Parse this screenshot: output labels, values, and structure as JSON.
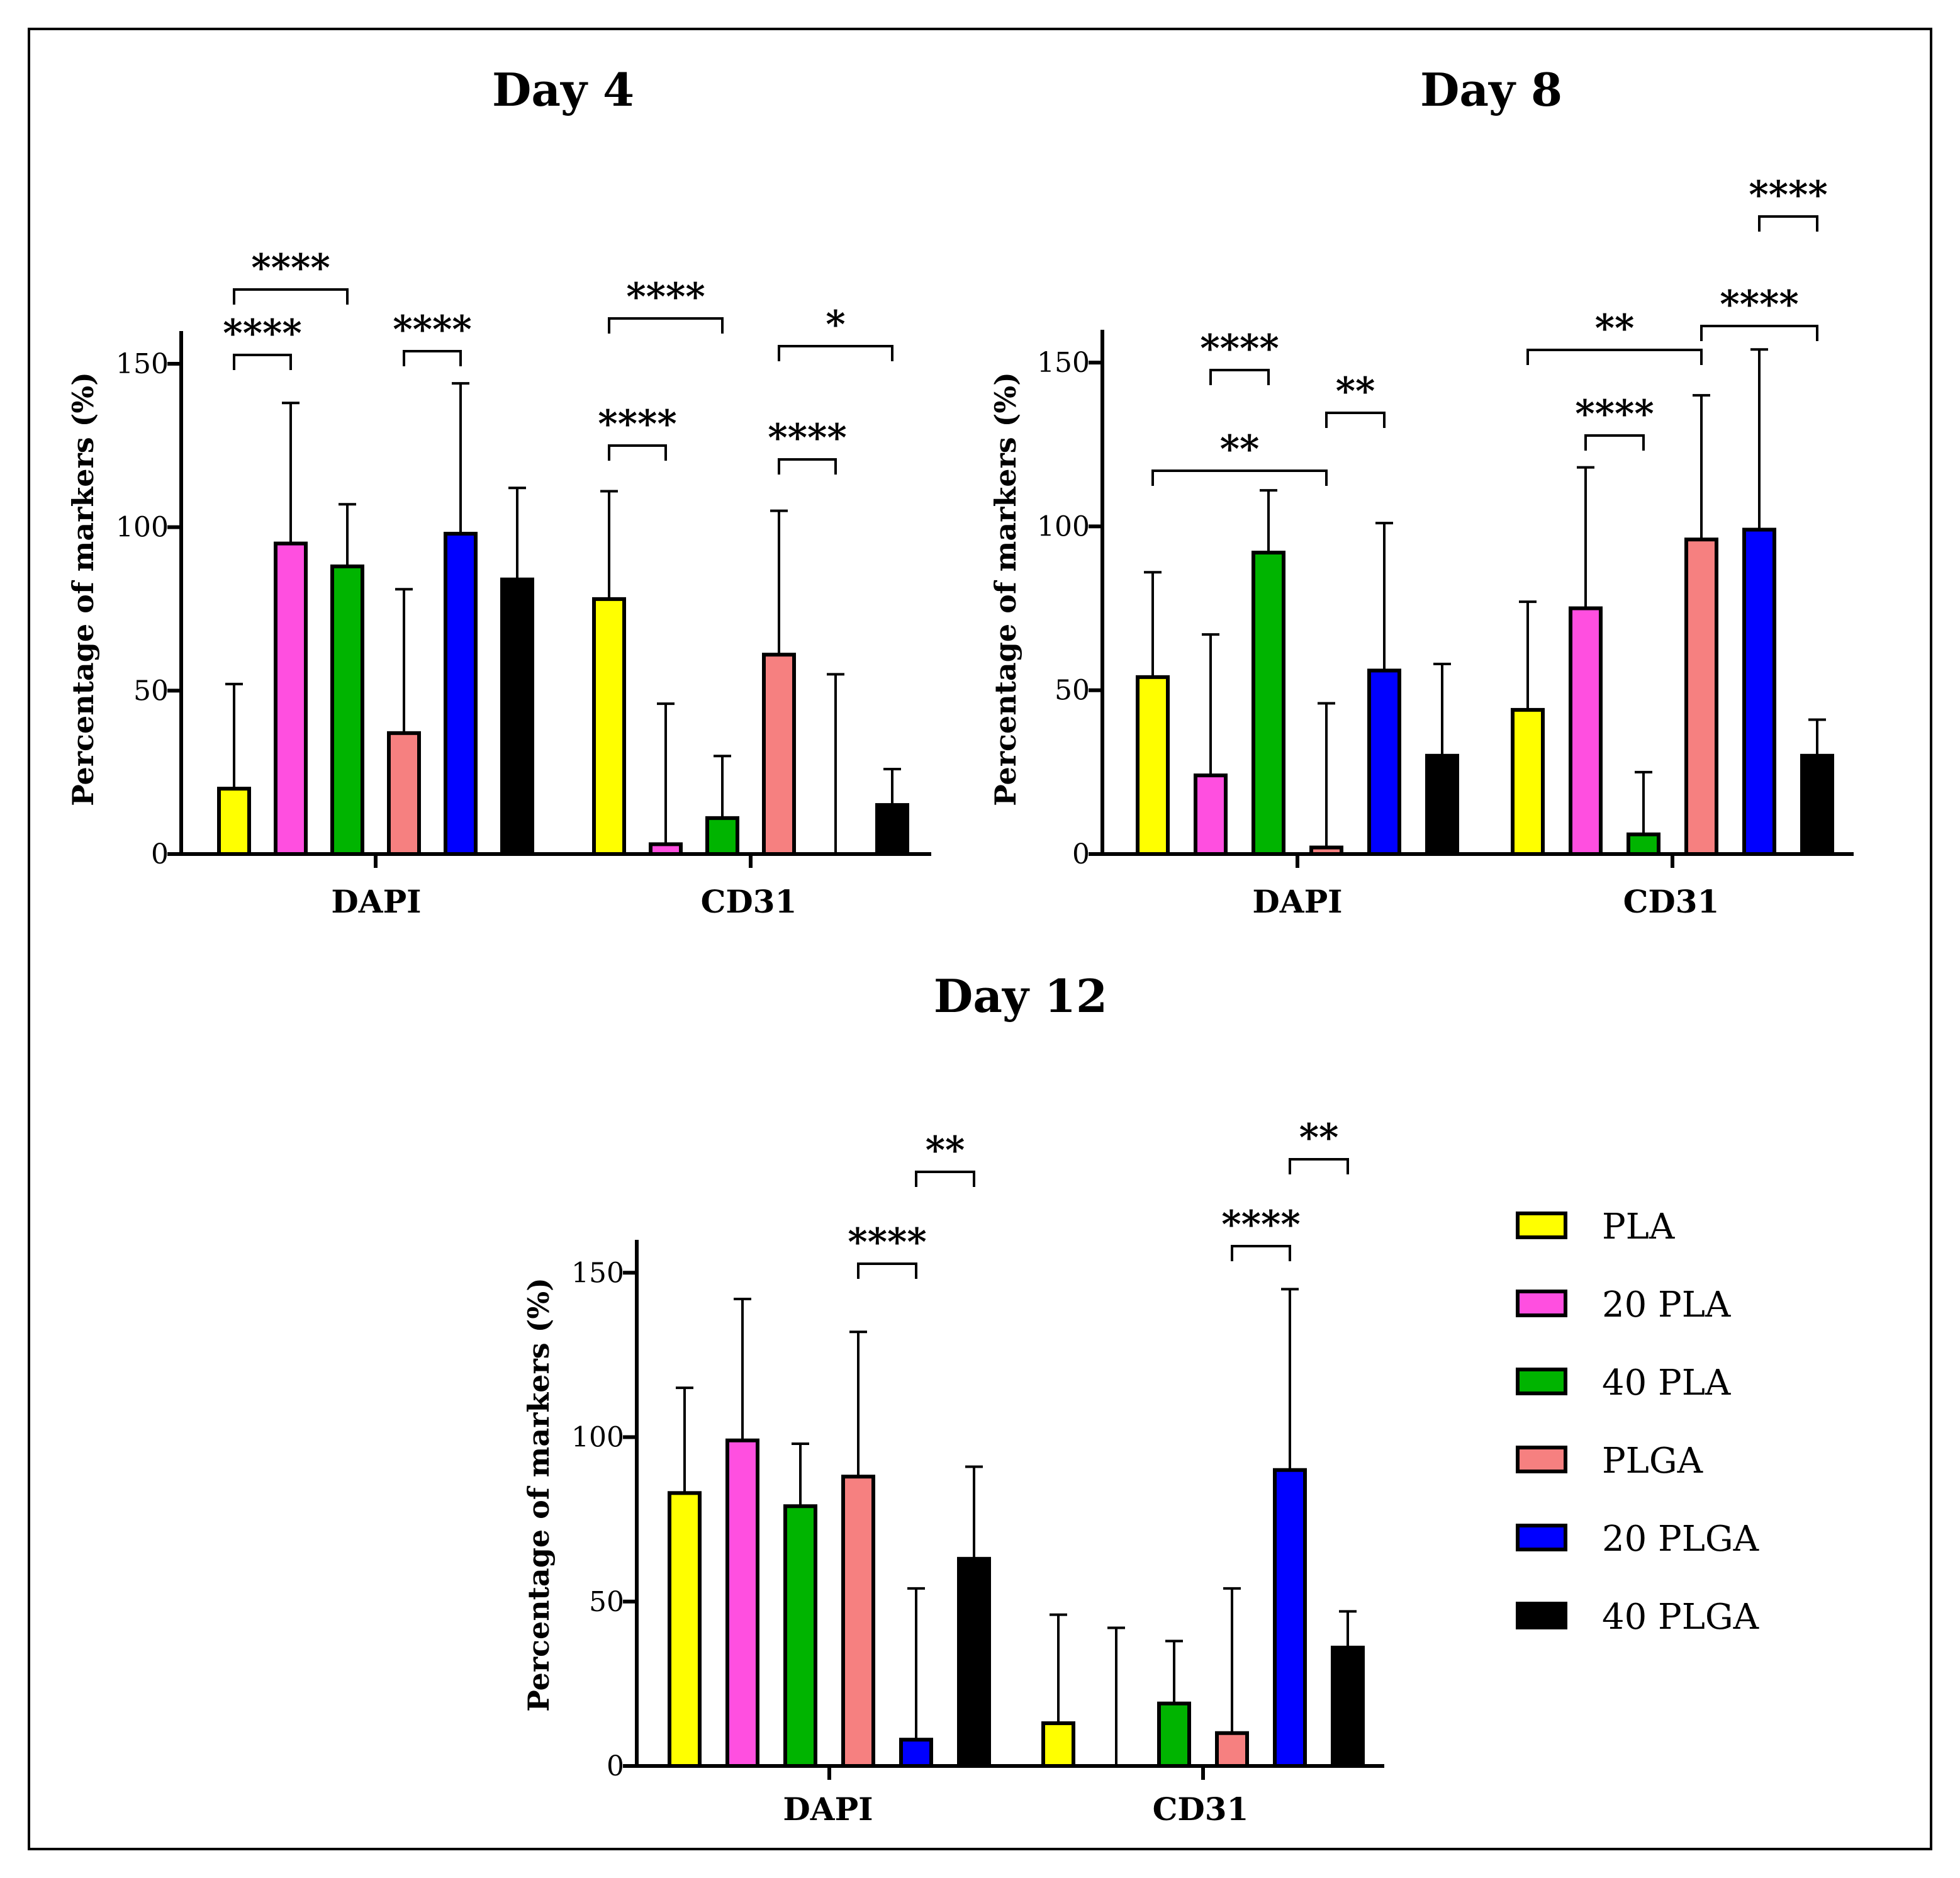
{
  "figure": {
    "legend": [
      {
        "label": "PLA",
        "color": "#ffff00"
      },
      {
        "label": "20 PLA",
        "color": "#ff4fe0"
      },
      {
        "label": "40 PLA",
        "color": "#00b400"
      },
      {
        "label": "PLGA",
        "color": "#f68080"
      },
      {
        "label": "20 PLGA",
        "color": "#0000ff"
      },
      {
        "label": "40 PLGA",
        "color": "#000000"
      }
    ]
  },
  "chart_data": [
    {
      "type": "bar",
      "title": "Day 4",
      "ylabel": "Percentage of markers (%)",
      "xlabel": "",
      "ylim": [
        0,
        160
      ],
      "yticks": [
        0,
        50,
        100,
        150
      ],
      "categories": [
        "DAPI",
        "CD31"
      ],
      "series": [
        {
          "name": "PLA",
          "values": [
            20,
            78
          ],
          "errors": [
            32,
            33
          ]
        },
        {
          "name": "20 PLA",
          "values": [
            95,
            3
          ],
          "errors": [
            43,
            43
          ]
        },
        {
          "name": "40 PLA",
          "values": [
            88,
            11
          ],
          "errors": [
            19,
            19
          ]
        },
        {
          "name": "PLGA",
          "values": [
            37,
            61
          ],
          "errors": [
            44,
            44
          ]
        },
        {
          "name": "20 PLGA",
          "values": [
            98,
            0
          ],
          "errors": [
            46,
            55
          ]
        },
        {
          "name": "40 PLGA",
          "values": [
            84,
            15
          ],
          "errors": [
            28,
            11
          ]
        }
      ],
      "significance": [
        {
          "label": "****",
          "from": [
            0,
            0
          ],
          "to": [
            0,
            1
          ]
        },
        {
          "label": "****",
          "from": [
            0,
            0
          ],
          "to": [
            0,
            2
          ]
        },
        {
          "label": "****",
          "from": [
            0,
            3
          ],
          "to": [
            0,
            4
          ]
        },
        {
          "label": "****",
          "from": [
            1,
            0
          ],
          "to": [
            1,
            1
          ]
        },
        {
          "label": "****",
          "from": [
            1,
            0
          ],
          "to": [
            1,
            2
          ]
        },
        {
          "label": "****",
          "from": [
            1,
            3
          ],
          "to": [
            1,
            4
          ]
        },
        {
          "label": "*",
          "from": [
            1,
            3
          ],
          "to": [
            1,
            5
          ]
        }
      ]
    },
    {
      "type": "bar",
      "title": "Day 8",
      "ylabel": "Percentage of markers (%)",
      "xlabel": "",
      "ylim": [
        0,
        160
      ],
      "yticks": [
        0,
        50,
        100,
        150
      ],
      "categories": [
        "DAPI",
        "CD31"
      ],
      "series": [
        {
          "name": "PLA",
          "values": [
            54,
            44
          ],
          "errors": [
            32,
            33
          ]
        },
        {
          "name": "20 PLA",
          "values": [
            24,
            75
          ],
          "errors": [
            43,
            43
          ]
        },
        {
          "name": "40 PLA",
          "values": [
            92,
            6
          ],
          "errors": [
            19,
            19
          ]
        },
        {
          "name": "PLGA",
          "values": [
            2,
            96
          ],
          "errors": [
            44,
            44
          ]
        },
        {
          "name": "20 PLGA",
          "values": [
            56,
            99
          ],
          "errors": [
            45,
            55
          ]
        },
        {
          "name": "40 PLGA",
          "values": [
            30,
            30
          ],
          "errors": [
            28,
            11
          ]
        }
      ],
      "significance": [
        {
          "label": "****",
          "from": [
            0,
            1
          ],
          "to": [
            0,
            2
          ]
        },
        {
          "label": "**",
          "from": [
            0,
            0
          ],
          "to": [
            0,
            3
          ]
        },
        {
          "label": "**",
          "from": [
            0,
            3
          ],
          "to": [
            0,
            4
          ]
        },
        {
          "label": "**",
          "from": [
            1,
            0
          ],
          "to": [
            1,
            3
          ]
        },
        {
          "label": "****",
          "from": [
            1,
            1
          ],
          "to": [
            1,
            2
          ]
        },
        {
          "label": "****",
          "from": [
            1,
            3
          ],
          "to": [
            1,
            5
          ]
        },
        {
          "label": "****",
          "from": [
            1,
            4
          ],
          "to": [
            1,
            5
          ]
        }
      ]
    },
    {
      "type": "bar",
      "title": "Day 12",
      "ylabel": "Percentage of markers (%)",
      "xlabel": "",
      "ylim": [
        0,
        160
      ],
      "yticks": [
        0,
        50,
        100,
        150
      ],
      "categories": [
        "DAPI",
        "CD31"
      ],
      "series": [
        {
          "name": "PLA",
          "values": [
            83,
            13
          ],
          "errors": [
            32,
            33
          ]
        },
        {
          "name": "20 PLA",
          "values": [
            99,
            0
          ],
          "errors": [
            43,
            42
          ]
        },
        {
          "name": "40 PLA",
          "values": [
            79,
            19
          ],
          "errors": [
            19,
            19
          ]
        },
        {
          "name": "PLGA",
          "values": [
            88,
            10
          ],
          "errors": [
            44,
            44
          ]
        },
        {
          "name": "20 PLGA",
          "values": [
            8,
            90
          ],
          "errors": [
            46,
            55
          ]
        },
        {
          "name": "40 PLGA",
          "values": [
            63,
            36
          ],
          "errors": [
            28,
            11
          ]
        }
      ],
      "significance": [
        {
          "label": "****",
          "from": [
            0,
            3
          ],
          "to": [
            0,
            4
          ]
        },
        {
          "label": "**",
          "from": [
            0,
            4
          ],
          "to": [
            0,
            5
          ]
        },
        {
          "label": "****",
          "from": [
            1,
            3
          ],
          "to": [
            1,
            4
          ]
        },
        {
          "label": "**",
          "from": [
            1,
            4
          ],
          "to": [
            1,
            5
          ]
        }
      ]
    }
  ]
}
